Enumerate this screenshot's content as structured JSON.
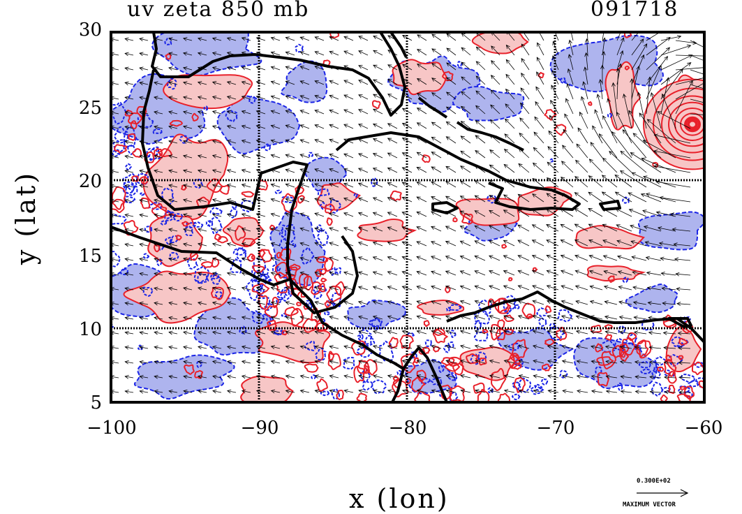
{
  "title_left": "uv zeta 850 mb",
  "title_right": "091718",
  "axes": {
    "xlabel": "x (lon)",
    "ylabel": "y (lat)",
    "xlim": [
      -100,
      -60
    ],
    "ylim": [
      5,
      30
    ],
    "xticks": [
      "−100",
      "−90",
      "−80",
      "−70",
      "−60"
    ],
    "yticks": [
      "30",
      "25",
      "20",
      "15",
      "10",
      "5"
    ],
    "grid": true
  },
  "legend": {
    "value_label": "0.300E+02",
    "caption": "MAXIMUM VECTOR"
  },
  "colors": {
    "positive_vorticity": "#e8202a",
    "positive_fill": "#f7c6c6",
    "negative_vorticity": "#1a24e6",
    "negative_fill": "#aeb4ee",
    "coast": "#000000"
  }
}
